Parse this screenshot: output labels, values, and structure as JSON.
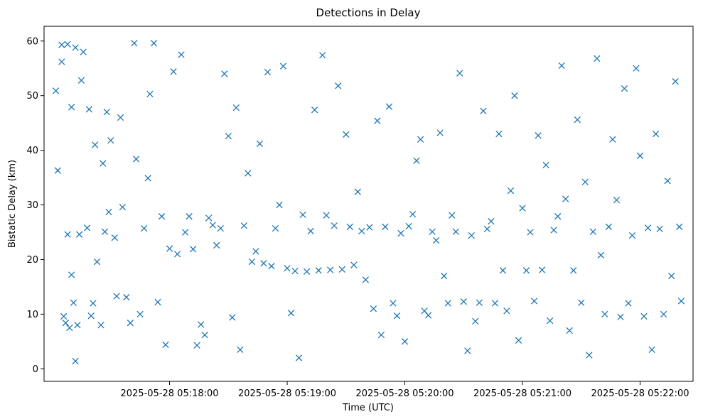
{
  "chart_data": {
    "type": "scatter",
    "title": "Detections in Delay",
    "xlabel": "Time (UTC)",
    "ylabel": "Bistatic Delay (km)",
    "marker": "x",
    "color": "#1f77b4",
    "grid": false,
    "legend": "none",
    "x_axis": {
      "kind": "time",
      "range": [
        "2025-05-28 05:16:56",
        "2025-05-28 05:22:27"
      ],
      "ticks": [
        "2025-05-28 05:18:00",
        "2025-05-28 05:19:00",
        "2025-05-28 05:20:00",
        "2025-05-28 05:21:00",
        "2025-05-28 05:22:00"
      ]
    },
    "y_axis": {
      "range": [
        -2.3,
        62.7
      ],
      "ticks": [
        0,
        10,
        20,
        30,
        40,
        50,
        60
      ]
    },
    "series": [
      {
        "x": [
          "05:17:02",
          "05:17:03",
          "05:17:05",
          "05:17:05",
          "05:17:06",
          "05:17:07",
          "05:17:08",
          "05:17:08",
          "05:17:09",
          "05:17:10",
          "05:17:10",
          "05:17:11",
          "05:17:12",
          "05:17:12",
          "05:17:13",
          "05:17:14",
          "05:17:15",
          "05:17:16",
          "05:17:18",
          "05:17:19",
          "05:17:20",
          "05:17:21",
          "05:17:22",
          "05:17:23",
          "05:17:25",
          "05:17:26",
          "05:17:27",
          "05:17:28",
          "05:17:29",
          "05:17:30",
          "05:17:32",
          "05:17:33",
          "05:17:35",
          "05:17:36",
          "05:17:38",
          "05:17:40",
          "05:17:42",
          "05:17:43",
          "05:17:45",
          "05:17:47",
          "05:17:49",
          "05:17:50",
          "05:17:52",
          "05:17:54",
          "05:17:56",
          "05:17:58",
          "05:18:00",
          "05:18:02",
          "05:18:04",
          "05:18:06",
          "05:18:08",
          "05:18:10",
          "05:18:12",
          "05:18:14",
          "05:18:16",
          "05:18:18",
          "05:18:20",
          "05:18:22",
          "05:18:24",
          "05:18:26",
          "05:18:28",
          "05:18:30",
          "05:18:32",
          "05:18:34",
          "05:18:36",
          "05:18:38",
          "05:18:40",
          "05:18:42",
          "05:18:44",
          "05:18:46",
          "05:18:48",
          "05:18:50",
          "05:18:52",
          "05:18:54",
          "05:18:56",
          "05:18:58",
          "05:19:00",
          "05:19:02",
          "05:19:04",
          "05:19:06",
          "05:19:08",
          "05:19:10",
          "05:19:12",
          "05:19:14",
          "05:19:16",
          "05:19:18",
          "05:19:20",
          "05:19:22",
          "05:19:24",
          "05:19:26",
          "05:19:28",
          "05:19:30",
          "05:19:32",
          "05:19:34",
          "05:19:36",
          "05:19:38",
          "05:19:40",
          "05:19:42",
          "05:19:44",
          "05:19:46",
          "05:19:48",
          "05:19:50",
          "05:19:52",
          "05:19:54",
          "05:19:56",
          "05:19:58",
          "05:20:00",
          "05:20:02",
          "05:20:04",
          "05:20:06",
          "05:20:08",
          "05:20:10",
          "05:20:12",
          "05:20:14",
          "05:20:16",
          "05:20:18",
          "05:20:20",
          "05:20:22",
          "05:20:24",
          "05:20:26",
          "05:20:28",
          "05:20:30",
          "05:20:32",
          "05:20:34",
          "05:20:36",
          "05:20:38",
          "05:20:40",
          "05:20:42",
          "05:20:44",
          "05:20:46",
          "05:20:48",
          "05:20:50",
          "05:20:52",
          "05:20:54",
          "05:20:56",
          "05:20:58",
          "05:21:00",
          "05:21:02",
          "05:21:04",
          "05:21:06",
          "05:21:08",
          "05:21:10",
          "05:21:12",
          "05:21:14",
          "05:21:16",
          "05:21:18",
          "05:21:20",
          "05:21:22",
          "05:21:24",
          "05:21:26",
          "05:21:28",
          "05:21:30",
          "05:21:32",
          "05:21:34",
          "05:21:36",
          "05:21:38",
          "05:21:40",
          "05:21:42",
          "05:21:44",
          "05:21:46",
          "05:21:48",
          "05:21:50",
          "05:21:52",
          "05:21:54",
          "05:21:56",
          "05:21:58",
          "05:22:00",
          "05:22:02",
          "05:22:04",
          "05:22:06",
          "05:22:08",
          "05:22:10",
          "05:22:12",
          "05:22:14",
          "05:22:16",
          "05:22:18",
          "05:22:20",
          "05:22:21"
        ],
        "y": [
          50.9,
          36.3,
          56.2,
          59.3,
          9.6,
          8.4,
          59.4,
          24.6,
          7.5,
          17.2,
          47.9,
          12.1,
          58.8,
          1.4,
          8.0,
          24.6,
          52.8,
          58.0,
          25.8,
          47.5,
          9.7,
          12.0,
          41.0,
          19.6,
          8.0,
          37.6,
          25.1,
          47.0,
          28.7,
          41.8,
          24.0,
          13.3,
          46.0,
          29.6,
          13.1,
          8.4,
          59.6,
          38.4,
          10.0,
          25.7,
          34.9,
          50.3,
          59.6,
          12.2,
          27.9,
          4.4,
          22.0,
          54.4,
          21.0,
          57.5,
          25.0,
          27.9,
          21.9,
          4.3,
          8.1,
          6.2,
          27.6,
          26.3,
          22.6,
          25.7,
          54.0,
          42.6,
          9.4,
          47.8,
          3.5,
          26.2,
          35.8,
          19.6,
          21.5,
          41.2,
          19.3,
          54.3,
          18.8,
          25.7,
          30.0,
          55.4,
          18.4,
          10.2,
          17.9,
          2.0,
          28.2,
          17.8,
          25.2,
          47.4,
          18.0,
          57.4,
          28.1,
          18.1,
          26.2,
          51.8,
          18.2,
          42.9,
          26.0,
          19.0,
          32.4,
          25.2,
          16.3,
          25.9,
          11.0,
          45.4,
          6.2,
          26.0,
          48.0,
          12.0,
          9.7,
          24.8,
          5.0,
          26.1,
          28.3,
          38.1,
          42.0,
          10.6,
          9.8,
          25.1,
          23.5,
          43.2,
          17.0,
          12.0,
          28.1,
          25.1,
          54.1,
          12.3,
          3.3,
          24.4,
          8.7,
          12.1,
          47.2,
          25.6,
          27.0,
          12.0,
          43.0,
          18.0,
          10.6,
          32.6,
          50.0,
          5.2,
          29.4,
          18.0,
          25.0,
          12.4,
          42.7,
          18.1,
          37.3,
          8.8,
          25.4,
          27.9,
          55.5,
          31.1,
          7.0,
          18.0,
          45.6,
          12.1,
          34.2,
          2.5,
          25.1,
          56.8,
          20.8,
          10.0,
          26.0,
          42.0,
          30.9,
          9.5,
          51.3,
          12.0,
          24.4,
          55.0,
          39.0,
          9.6,
          25.8,
          3.5,
          43.0,
          25.6,
          10.0,
          34.4,
          17.0,
          52.6,
          26.0,
          12.4
        ]
      }
    ]
  }
}
